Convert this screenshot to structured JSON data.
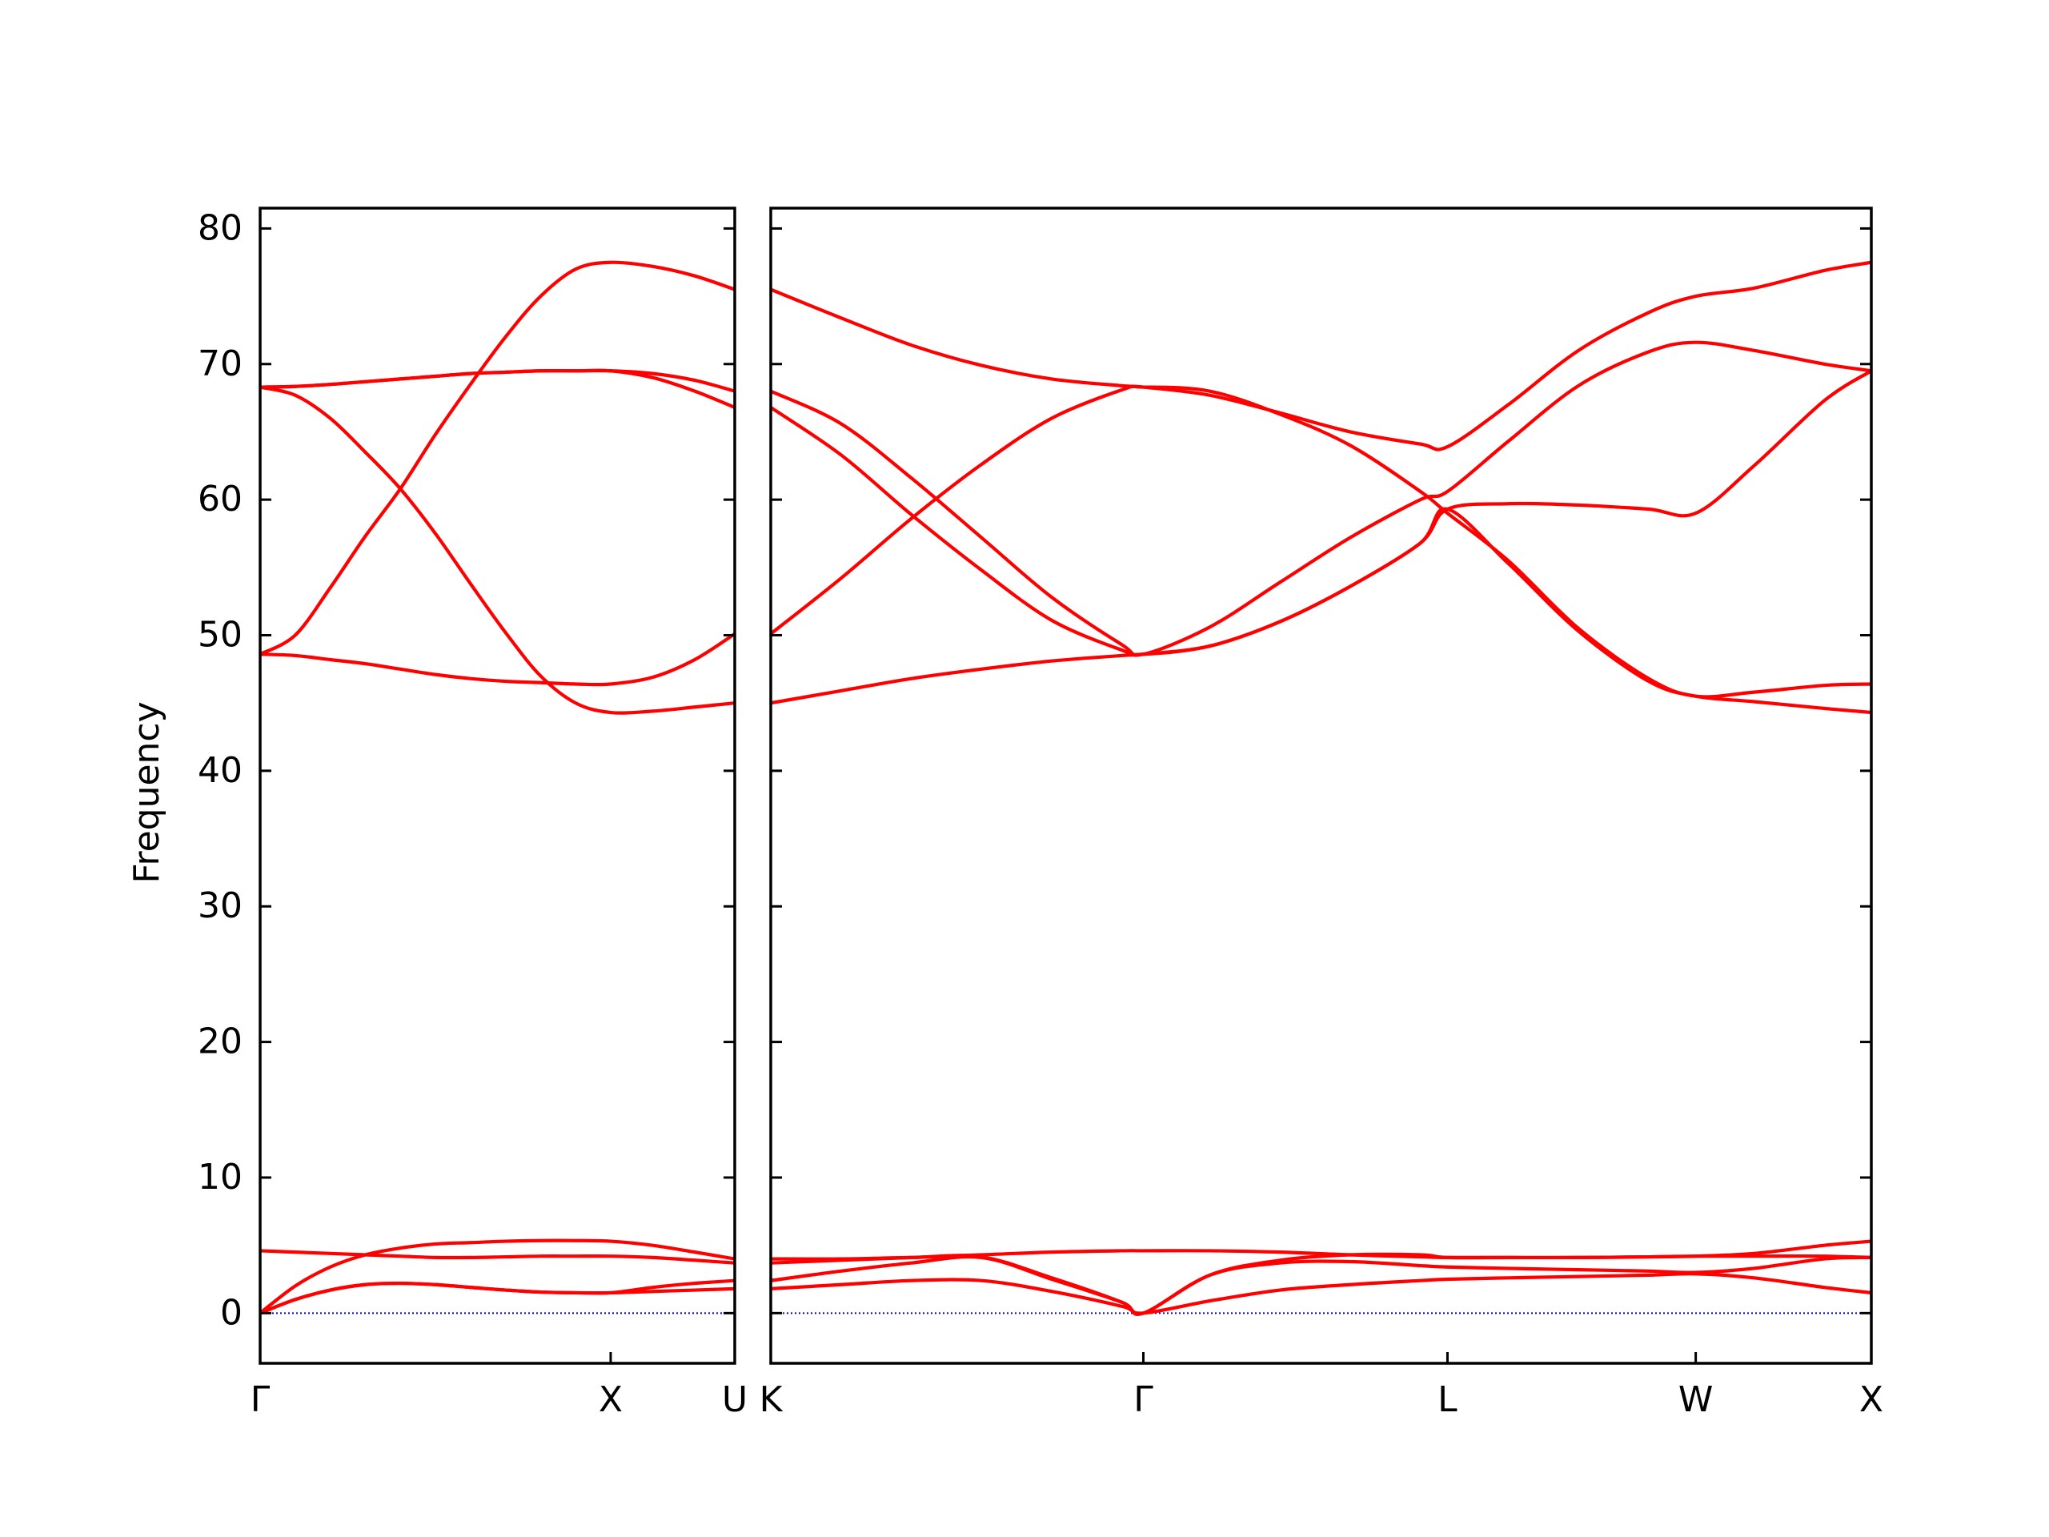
{
  "chart_data": [
    {
      "type": "line",
      "y_label": "Frequency",
      "ytick_labels": true,
      "color": "#ff0000",
      "x": [
        0,
        0.1,
        0.2,
        0.3,
        0.4,
        0.5,
        0.6,
        0.7,
        0.8,
        0.9,
        1.0,
        1.12,
        1.24,
        1.354
      ],
      "xlim": [
        0,
        1.354
      ],
      "xticks": [
        {
          "value": 0,
          "label": "Γ"
        },
        {
          "value": 1.0,
          "label": "X"
        },
        {
          "value": 1.354,
          "label": "U"
        }
      ],
      "ylim": [
        -3.7,
        81.5
      ],
      "yticks": [
        0,
        10,
        20,
        30,
        40,
        50,
        60,
        70,
        80
      ],
      "hline": {
        "value": 0,
        "color": "#0000cc"
      },
      "series": [
        {
          "color": "#ff0000",
          "values": [
            0,
            1.0,
            1.7,
            2.1,
            2.2,
            2.1,
            1.9,
            1.7,
            1.55,
            1.5,
            1.5,
            1.6,
            1.7,
            1.8
          ]
        },
        {
          "color": "#ff0000",
          "values": [
            0,
            1.0,
            1.7,
            2.1,
            2.2,
            2.1,
            1.9,
            1.7,
            1.55,
            1.5,
            1.5,
            1.9,
            2.2,
            2.4
          ]
        },
        {
          "color": "#ff0000",
          "values": [
            0,
            2.0,
            3.4,
            4.3,
            4.8,
            5.1,
            5.2,
            5.3,
            5.35,
            5.35,
            5.3,
            5.0,
            4.5,
            4.0
          ]
        },
        {
          "color": "#ff0000",
          "values": [
            4.6,
            4.5,
            4.4,
            4.3,
            4.2,
            4.1,
            4.1,
            4.15,
            4.2,
            4.2,
            4.2,
            4.1,
            3.9,
            3.7
          ]
        },
        {
          "color": "#ff0000",
          "values": [
            68.3,
            67.7,
            66.0,
            63.5,
            60.8,
            57.5,
            53.8,
            50.2,
            47.0,
            45.0,
            44.3,
            44.4,
            44.7,
            45.0
          ]
        },
        {
          "color": "#ff0000",
          "values": [
            48.6,
            50.0,
            53.5,
            57.3,
            60.8,
            64.8,
            68.5,
            72.0,
            75.0,
            77.0,
            77.5,
            77.2,
            76.5,
            75.5
          ]
        },
        {
          "color": "#ff0000",
          "values": [
            48.6,
            48.5,
            48.2,
            47.9,
            47.5,
            47.1,
            46.8,
            46.6,
            46.5,
            46.4,
            46.4,
            46.9,
            48.2,
            50.1
          ]
        },
        {
          "color": "#ff0000",
          "values": [
            68.3,
            68.35,
            68.5,
            68.7,
            68.9,
            69.1,
            69.3,
            69.4,
            69.5,
            69.5,
            69.5,
            69.3,
            68.8,
            68.0
          ]
        },
        {
          "color": "#ff0000",
          "values": [
            68.3,
            68.35,
            68.5,
            68.7,
            68.9,
            69.1,
            69.3,
            69.4,
            69.5,
            69.5,
            69.5,
            69.0,
            68.0,
            66.8
          ]
        }
      ]
    },
    {
      "type": "line",
      "ytick_labels": false,
      "color": "#ff0000",
      "x": [
        0,
        0.2,
        0.4,
        0.6,
        0.8,
        1.0,
        1.061,
        1.25,
        1.45,
        1.65,
        1.85,
        1.927,
        2.1,
        2.3,
        2.5,
        2.634,
        2.8,
        3.0,
        3.134
      ],
      "xlim": [
        0,
        3.134
      ],
      "xticks": [
        {
          "value": 0,
          "label": "K"
        },
        {
          "value": 1.061,
          "label": "Γ"
        },
        {
          "value": 1.927,
          "label": "L"
        },
        {
          "value": 2.634,
          "label": "W"
        },
        {
          "value": 3.134,
          "label": "X"
        }
      ],
      "ylim": [
        -3.7,
        81.5
      ],
      "yticks": [
        0,
        10,
        20,
        30,
        40,
        50,
        60,
        70,
        80
      ],
      "hline": {
        "value": 0,
        "color": "#0000cc"
      },
      "series": [
        {
          "color": "#ff0000",
          "values": [
            1.8,
            2.1,
            2.4,
            2.4,
            1.6,
            0.5,
            0,
            0.9,
            1.7,
            2.1,
            2.4,
            2.5,
            2.6,
            2.7,
            2.8,
            2.9,
            2.6,
            1.9,
            1.5
          ]
        },
        {
          "color": "#ff0000",
          "values": [
            2.4,
            3.1,
            3.7,
            4.1,
            2.5,
            0.8,
            0,
            2.8,
            3.7,
            3.8,
            3.5,
            3.4,
            3.3,
            3.2,
            3.1,
            3.0,
            3.3,
            4.0,
            4.1
          ]
        },
        {
          "color": "#ff0000",
          "values": [
            4.0,
            4.0,
            4.1,
            4.15,
            2.6,
            0.8,
            0,
            2.8,
            3.9,
            4.3,
            4.3,
            4.1,
            4.1,
            4.1,
            4.15,
            4.2,
            4.4,
            5.0,
            5.3
          ]
        },
        {
          "color": "#ff0000",
          "values": [
            3.7,
            3.9,
            4.1,
            4.3,
            4.5,
            4.6,
            4.6,
            4.6,
            4.5,
            4.3,
            4.15,
            4.1,
            4.1,
            4.1,
            4.15,
            4.2,
            4.2,
            4.2,
            4.1
          ]
        },
        {
          "color": "#ff0000",
          "values": [
            75.5,
            73.4,
            71.4,
            69.9,
            68.9,
            68.4,
            68.3,
            67.7,
            66.4,
            65.0,
            64.1,
            63.9,
            67.0,
            71.0,
            73.8,
            75.0,
            75.6,
            76.9,
            77.5
          ]
        },
        {
          "color": "#ff0000",
          "values": [
            68.0,
            65.6,
            61.6,
            57.2,
            52.8,
            49.3,
            48.6,
            50.6,
            53.9,
            57.2,
            60.0,
            60.6,
            64.3,
            68.4,
            70.9,
            71.6,
            71.0,
            70.0,
            69.5
          ]
        },
        {
          "color": "#ff0000",
          "values": [
            66.8,
            63.3,
            58.9,
            54.8,
            51.1,
            48.9,
            48.6,
            49.2,
            51.0,
            53.6,
            56.8,
            59.3,
            59.7,
            59.6,
            59.3,
            59.0,
            62.5,
            67.3,
            69.5
          ]
        },
        {
          "color": "#ff0000",
          "values": [
            50.1,
            54.2,
            58.6,
            62.6,
            66.0,
            68.1,
            68.3,
            68.0,
            66.3,
            64.0,
            60.6,
            59.0,
            55.5,
            50.5,
            46.8,
            45.5,
            45.8,
            46.3,
            46.4
          ]
        },
        {
          "color": "#ff0000",
          "values": [
            45.0,
            45.9,
            46.8,
            47.5,
            48.1,
            48.5,
            48.6,
            49.2,
            51.0,
            53.6,
            56.8,
            59.3,
            55.3,
            50.3,
            46.6,
            45.5,
            45.1,
            44.6,
            44.3
          ]
        }
      ]
    }
  ]
}
